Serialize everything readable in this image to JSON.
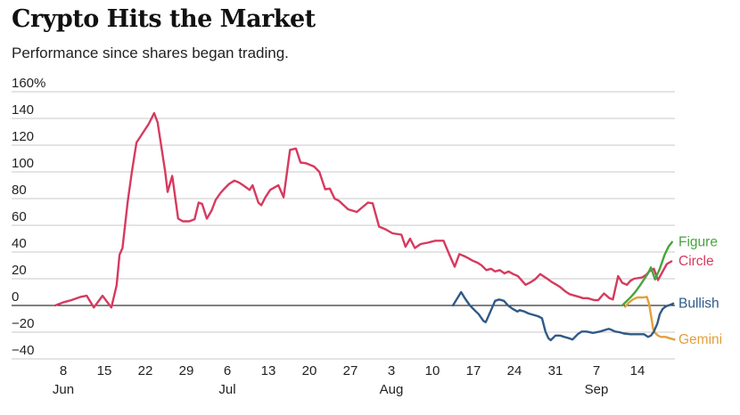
{
  "header": {
    "title": "Crypto Hits the Market",
    "subtitle": "Performance since shares began trading."
  },
  "chart_data": {
    "type": "line",
    "title": "Crypto Hits the Market",
    "subtitle": "Performance since shares began trading.",
    "grid": true,
    "legend_position": "right-of-line-ends",
    "x_unit": "days-since-Jun-1",
    "x_axis": {
      "ticks": [
        {
          "d": 8,
          "label": "8",
          "month": "Jun"
        },
        {
          "d": 15,
          "label": "15"
        },
        {
          "d": 22,
          "label": "22"
        },
        {
          "d": 29,
          "label": "29"
        },
        {
          "d": 36,
          "label": "6",
          "month": "Jul"
        },
        {
          "d": 43,
          "label": "13"
        },
        {
          "d": 50,
          "label": "20"
        },
        {
          "d": 57,
          "label": "27"
        },
        {
          "d": 64,
          "label": "3",
          "month": "Aug"
        },
        {
          "d": 71,
          "label": "10"
        },
        {
          "d": 78,
          "label": "17"
        },
        {
          "d": 85,
          "label": "24"
        },
        {
          "d": 92,
          "label": "31"
        },
        {
          "d": 99,
          "label": "7",
          "month": "Sep"
        },
        {
          "d": 106,
          "label": "14"
        }
      ]
    },
    "y_axis": {
      "range": [
        -40,
        160
      ],
      "ticks": [
        {
          "v": 160,
          "label": "160%"
        },
        {
          "v": 140,
          "label": "140"
        },
        {
          "v": 120,
          "label": "120"
        },
        {
          "v": 100,
          "label": "100"
        },
        {
          "v": 80,
          "label": "80"
        },
        {
          "v": 60,
          "label": "60"
        },
        {
          "v": 40,
          "label": "40"
        },
        {
          "v": 20,
          "label": "20"
        },
        {
          "v": 0,
          "label": "0"
        },
        {
          "v": -20,
          "label": "−20"
        },
        {
          "v": -40,
          "label": "−40"
        }
      ]
    },
    "grid_color": "#c9c9c9",
    "zero_line_color": "#000000",
    "series": [
      {
        "name": "Circle",
        "color": "#d63a5f",
        "points": [
          [
            6.6,
            0
          ],
          [
            8.1,
            2.5
          ],
          [
            9.4,
            4
          ],
          [
            11.0,
            6.5
          ],
          [
            12.0,
            7.3
          ],
          [
            13.2,
            -1.5
          ],
          [
            14.7,
            7.3
          ],
          [
            16.2,
            -1.5
          ],
          [
            17.1,
            15
          ],
          [
            17.6,
            38
          ],
          [
            18.1,
            43
          ],
          [
            19.0,
            78
          ],
          [
            19.7,
            100
          ],
          [
            20.5,
            122
          ],
          [
            21.1,
            126
          ],
          [
            22.6,
            136
          ],
          [
            23.5,
            144
          ],
          [
            24.1,
            137
          ],
          [
            25.4,
            100
          ],
          [
            25.8,
            85
          ],
          [
            26.6,
            97
          ],
          [
            27.6,
            65
          ],
          [
            28.4,
            63
          ],
          [
            29.5,
            63
          ],
          [
            30.4,
            64.5
          ],
          [
            31.1,
            77
          ],
          [
            31.7,
            76
          ],
          [
            32.5,
            65
          ],
          [
            33.3,
            71
          ],
          [
            34.0,
            79
          ],
          [
            34.8,
            84
          ],
          [
            35.5,
            87.5
          ],
          [
            36.3,
            91
          ],
          [
            37.2,
            93.5
          ],
          [
            38.0,
            92
          ],
          [
            38.7,
            90
          ],
          [
            39.8,
            86.5
          ],
          [
            40.3,
            90
          ],
          [
            41.3,
            77
          ],
          [
            41.8,
            75
          ],
          [
            42.5,
            81
          ],
          [
            43.3,
            86.5
          ],
          [
            44.7,
            90
          ],
          [
            45.6,
            81
          ],
          [
            46.7,
            116.5
          ],
          [
            47.7,
            117.5
          ],
          [
            48.5,
            107
          ],
          [
            49.4,
            106.5
          ],
          [
            50.8,
            104
          ],
          [
            51.7,
            100
          ],
          [
            52.7,
            87
          ],
          [
            53.5,
            87.5
          ],
          [
            54.3,
            80
          ],
          [
            55.0,
            78.5
          ],
          [
            56.6,
            72
          ],
          [
            58.1,
            70
          ],
          [
            60.0,
            77
          ],
          [
            60.8,
            76.5
          ],
          [
            61.9,
            59
          ],
          [
            63.0,
            57
          ],
          [
            64.2,
            54
          ],
          [
            65.7,
            53
          ],
          [
            66.4,
            44
          ],
          [
            67.2,
            50
          ],
          [
            68.0,
            43
          ],
          [
            69.0,
            46
          ],
          [
            70.2,
            47
          ],
          [
            71.5,
            48.5
          ],
          [
            72.9,
            48.5
          ],
          [
            74.0,
            37
          ],
          [
            74.8,
            29
          ],
          [
            75.6,
            38.5
          ],
          [
            76.4,
            37
          ],
          [
            77.1,
            35.5
          ],
          [
            77.9,
            33.5
          ],
          [
            78.7,
            32
          ],
          [
            79.4,
            30
          ],
          [
            80.2,
            26.5
          ],
          [
            81.0,
            27.5
          ],
          [
            81.7,
            25.5
          ],
          [
            82.5,
            26.5
          ],
          [
            83.3,
            24
          ],
          [
            84.0,
            25.5
          ],
          [
            84.8,
            23.5
          ],
          [
            85.6,
            22
          ],
          [
            86.3,
            18.5
          ],
          [
            86.9,
            15.5
          ],
          [
            87.8,
            17.5
          ],
          [
            88.5,
            19.5
          ],
          [
            89.4,
            23.5
          ],
          [
            90.6,
            20
          ],
          [
            91.4,
            17.5
          ],
          [
            92.2,
            15.5
          ],
          [
            92.9,
            13.5
          ],
          [
            93.7,
            10.5
          ],
          [
            94.4,
            8.5
          ],
          [
            95.2,
            7.5
          ],
          [
            96.0,
            6.5
          ],
          [
            96.7,
            5.5
          ],
          [
            97.5,
            5.5
          ],
          [
            98.6,
            4
          ],
          [
            99.3,
            4
          ],
          [
            100.3,
            9
          ],
          [
            101.2,
            5.5
          ],
          [
            101.8,
            4.5
          ],
          [
            102.7,
            22
          ],
          [
            103.4,
            17
          ],
          [
            104.2,
            15.5
          ],
          [
            104.8,
            18.5
          ],
          [
            105.4,
            20
          ],
          [
            106.8,
            21
          ],
          [
            107.5,
            23
          ],
          [
            108.0,
            25.5
          ],
          [
            108.8,
            27.5
          ],
          [
            109.5,
            19
          ],
          [
            110.3,
            25.5
          ],
          [
            111.0,
            31
          ],
          [
            111.8,
            33
          ]
        ]
      },
      {
        "name": "Gemini",
        "color": "#e2a03c",
        "points": [
          [
            103.9,
            -1
          ],
          [
            104.5,
            2
          ],
          [
            105.2,
            4.5
          ],
          [
            106.0,
            6
          ],
          [
            107.0,
            6
          ],
          [
            107.6,
            6.5
          ],
          [
            108.0,
            1
          ],
          [
            108.4,
            -10
          ],
          [
            108.7,
            -18
          ],
          [
            109.0,
            -20.5
          ],
          [
            109.5,
            -22.5
          ],
          [
            110.0,
            -23.5
          ],
          [
            110.8,
            -23.5
          ],
          [
            111.5,
            -24.5
          ],
          [
            112.3,
            -25.5
          ]
        ]
      },
      {
        "name": "Bullish",
        "color": "#2f5a87",
        "points": [
          [
            74.5,
            0
          ],
          [
            75.9,
            10
          ],
          [
            76.6,
            5
          ],
          [
            77.4,
            0
          ],
          [
            78.2,
            -3.5
          ],
          [
            78.9,
            -6.5
          ],
          [
            79.7,
            -11.5
          ],
          [
            80.1,
            -12.5
          ],
          [
            80.9,
            -4.5
          ],
          [
            81.7,
            3.5
          ],
          [
            82.4,
            4.5
          ],
          [
            83.2,
            3.5
          ],
          [
            83.9,
            0
          ],
          [
            84.7,
            -2.5
          ],
          [
            85.5,
            -4.5
          ],
          [
            85.9,
            -3.5
          ],
          [
            86.7,
            -4.5
          ],
          [
            87.4,
            -6
          ],
          [
            88.2,
            -7
          ],
          [
            89.0,
            -8
          ],
          [
            89.7,
            -9.5
          ],
          [
            90.3,
            -19.5
          ],
          [
            90.8,
            -24.5
          ],
          [
            91.2,
            -26
          ],
          [
            92.0,
            -22.5
          ],
          [
            92.8,
            -22.5
          ],
          [
            93.5,
            -23.5
          ],
          [
            94.3,
            -24.5
          ],
          [
            94.9,
            -25.5
          ],
          [
            95.8,
            -21.5
          ],
          [
            96.5,
            -19.5
          ],
          [
            97.3,
            -19.5
          ],
          [
            98.4,
            -20.5
          ],
          [
            99.6,
            -19.5
          ],
          [
            100.7,
            -18
          ],
          [
            101.1,
            -17.5
          ],
          [
            101.7,
            -18.5
          ],
          [
            102.2,
            -19.5
          ],
          [
            102.9,
            -20
          ],
          [
            103.7,
            -21
          ],
          [
            104.8,
            -21.5
          ],
          [
            106.0,
            -21.5
          ],
          [
            107.1,
            -21.5
          ],
          [
            107.8,
            -23.5
          ],
          [
            108.3,
            -22.5
          ],
          [
            108.8,
            -19.5
          ],
          [
            109.4,
            -13.5
          ],
          [
            109.8,
            -6.5
          ],
          [
            110.3,
            -2.5
          ],
          [
            110.9,
            -0.5
          ],
          [
            111.6,
            0.5
          ],
          [
            112.1,
            1.5
          ]
        ]
      },
      {
        "name": "Figure",
        "color": "#46a53c",
        "points": [
          [
            103.4,
            0
          ],
          [
            104.2,
            3.5
          ],
          [
            104.9,
            6.5
          ],
          [
            105.7,
            10.5
          ],
          [
            106.5,
            15.5
          ],
          [
            107.2,
            20
          ],
          [
            107.8,
            24
          ],
          [
            108.3,
            28.5
          ],
          [
            109.0,
            19.5
          ],
          [
            109.8,
            27.5
          ],
          [
            110.6,
            37.5
          ],
          [
            111.3,
            44
          ],
          [
            111.9,
            47.5
          ]
        ]
      }
    ]
  }
}
